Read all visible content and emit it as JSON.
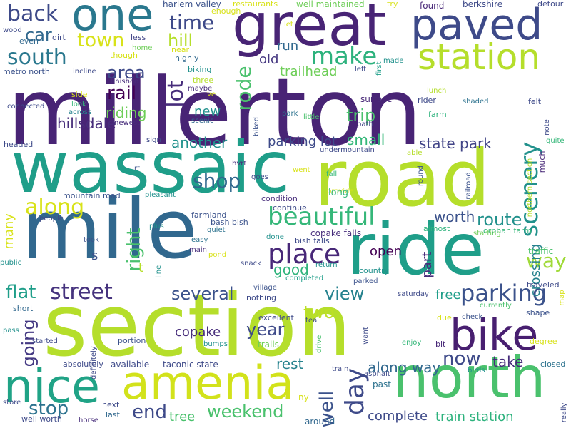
{
  "words": [
    {
      "text": "millerton",
      "color": "#482475"
    },
    {
      "text": "section",
      "color": "#b5de2b"
    },
    {
      "text": "mile",
      "color": "#31688e"
    },
    {
      "text": "wassaic",
      "color": "#1f9e89"
    },
    {
      "text": "road",
      "color": "#b5de2b"
    },
    {
      "text": "ride",
      "color": "#1f9e89"
    },
    {
      "text": "great",
      "color": "#482475"
    },
    {
      "text": "north",
      "color": "#4ac16d"
    },
    {
      "text": "amenia",
      "color": "#d2e21b"
    },
    {
      "text": "nice",
      "color": "#20a386"
    },
    {
      "text": "bike",
      "color": "#481f70"
    },
    {
      "text": "paved",
      "color": "#3e4a89"
    },
    {
      "text": "one",
      "color": "#2a788e"
    },
    {
      "text": "station",
      "color": "#b5de2b"
    },
    {
      "text": "place",
      "color": "#482878"
    },
    {
      "text": "beautiful",
      "color": "#35b779"
    },
    {
      "text": "make",
      "color": "#2db27d"
    },
    {
      "text": "scenery",
      "color": "#21918c"
    },
    {
      "text": "parking",
      "color": "#3b528b"
    },
    {
      "text": "day",
      "color": "#3e4a89"
    },
    {
      "text": "weekend",
      "color": "#4ac16d"
    },
    {
      "text": "south",
      "color": "#2a788e"
    },
    {
      "text": "along",
      "color": "#d8e219"
    },
    {
      "text": "street",
      "color": "#46337e"
    },
    {
      "text": "way",
      "color": "#a0da39"
    },
    {
      "text": "shop",
      "color": "#31688e"
    },
    {
      "text": "back",
      "color": "#3e4a89"
    },
    {
      "text": "time",
      "color": "#3e4a89"
    },
    {
      "text": "town",
      "color": "#d8e219"
    },
    {
      "text": "stop",
      "color": "#2c728e"
    },
    {
      "text": "end",
      "color": "#3e4a89"
    },
    {
      "text": "several",
      "color": "#3b528b"
    },
    {
      "text": "view",
      "color": "#26828e"
    },
    {
      "text": "well",
      "color": "#3b528b"
    },
    {
      "text": "right",
      "color": "#4ac16d"
    },
    {
      "text": "lot",
      "color": "#472d7b"
    },
    {
      "text": "rode",
      "color": "#4ac16d"
    },
    {
      "text": "year",
      "color": "#3e4a89"
    },
    {
      "text": "route",
      "color": "#21918c"
    },
    {
      "text": "rail",
      "color": "#440154"
    },
    {
      "text": "area",
      "color": "#3e4a89"
    },
    {
      "text": "trip",
      "color": "#4ac16d"
    },
    {
      "text": "now",
      "color": "#3e4a89"
    },
    {
      "text": "flat",
      "color": "#1f9e89"
    },
    {
      "text": "going",
      "color": "#443983"
    },
    {
      "text": "hill",
      "color": "#b5de2b"
    },
    {
      "text": "car",
      "color": "#31688e"
    },
    {
      "text": "hillsdale",
      "color": "#472d7b"
    },
    {
      "text": "state park",
      "color": "#414487"
    },
    {
      "text": "small",
      "color": "#35b779"
    },
    {
      "text": "riding",
      "color": "#6ece58"
    },
    {
      "text": "open",
      "color": "#440154"
    },
    {
      "text": "two",
      "color": "#bddf26"
    },
    {
      "text": "complete",
      "color": "#3e4a89"
    },
    {
      "text": "train station",
      "color": "#2db27d"
    },
    {
      "text": "copake",
      "color": "#472d7b"
    },
    {
      "text": "another",
      "color": "#21918c"
    },
    {
      "text": "good",
      "color": "#2fb47c"
    },
    {
      "text": "worth",
      "color": "#3b528b"
    },
    {
      "text": "take",
      "color": "#472d7b"
    },
    {
      "text": "rest",
      "color": "#26828e"
    },
    {
      "text": "along way",
      "color": "#31688e"
    },
    {
      "text": "parking lot",
      "color": "#3e4a89"
    },
    {
      "text": "new",
      "color": "#21918c"
    },
    {
      "text": "crossing",
      "color": "#26828e"
    },
    {
      "text": "part",
      "color": "#472d7b"
    },
    {
      "text": "free",
      "color": "#1f9e89"
    },
    {
      "text": "many",
      "color": "#d8e219"
    },
    {
      "text": "tree",
      "color": "#4ac16d"
    },
    {
      "text": "run",
      "color": "#31688e"
    },
    {
      "text": "old",
      "color": "#453781"
    },
    {
      "text": "trailhead",
      "color": "#6ece58"
    },
    {
      "text": "s",
      "color": "#3b528b"
    },
    {
      "text": "t",
      "color": "#b5de2b"
    },
    {
      "text": "harlem valley",
      "color": "#3b528b"
    },
    {
      "text": "well maintained",
      "color": "#6ece58"
    },
    {
      "text": "berkshire",
      "color": "#3e4a89"
    },
    {
      "text": "found",
      "color": "#482878"
    },
    {
      "text": "detour",
      "color": "#3e4a89"
    },
    {
      "text": "restaurants",
      "color": "#d8e219"
    },
    {
      "text": "try",
      "color": "#d8e219"
    },
    {
      "text": "enough",
      "color": "#d8e219"
    },
    {
      "text": "wood",
      "color": "#3e4a89"
    },
    {
      "text": "dirt",
      "color": "#3e4a89"
    },
    {
      "text": "less",
      "color": "#414487"
    },
    {
      "text": "even",
      "color": "#31688e"
    },
    {
      "text": "home",
      "color": "#6ece58"
    },
    {
      "text": "though",
      "color": "#d8e219"
    },
    {
      "text": "near",
      "color": "#d8e219"
    },
    {
      "text": "highly",
      "color": "#31688e"
    },
    {
      "text": "let",
      "color": "#d8e219"
    },
    {
      "text": "made",
      "color": "#21918c"
    },
    {
      "text": "first",
      "color": "#1f9e89"
    },
    {
      "text": "left",
      "color": "#3e4a89"
    },
    {
      "text": "metro north",
      "color": "#3b528b"
    },
    {
      "text": "incline",
      "color": "#3e4a89"
    },
    {
      "text": "biking",
      "color": "#21918c"
    },
    {
      "text": "three",
      "color": "#b5de2b"
    },
    {
      "text": "maybe",
      "color": "#472d7b"
    },
    {
      "text": "ve",
      "color": "#d8e219"
    },
    {
      "text": "finished",
      "color": "#472d7b"
    },
    {
      "text": "path",
      "color": "#414487"
    },
    {
      "text": "surface",
      "color": "#482878"
    },
    {
      "text": "lunch",
      "color": "#b5de2b"
    },
    {
      "text": "rider",
      "color": "#3e4a89"
    },
    {
      "text": "felt",
      "color": "#3e4a89"
    },
    {
      "text": "side",
      "color": "#d8e219"
    },
    {
      "text": "look",
      "color": "#35b779"
    },
    {
      "text": "across",
      "color": "#26828e"
    },
    {
      "text": "connected",
      "color": "#3e4a89"
    },
    {
      "text": "newest",
      "color": "#472d7b"
    },
    {
      "text": "scenic",
      "color": "#31688e"
    },
    {
      "text": "park",
      "color": "#2c728e"
    },
    {
      "text": "little",
      "color": "#4ac16d"
    },
    {
      "text": "shaded",
      "color": "#2c728e"
    },
    {
      "text": "farm",
      "color": "#2db27d"
    },
    {
      "text": "biked",
      "color": "#3b528b"
    },
    {
      "text": "note",
      "color": "#3e4a89"
    },
    {
      "text": "quite",
      "color": "#35b779"
    },
    {
      "text": "headed",
      "color": "#3e4a89"
    },
    {
      "text": "sign",
      "color": "#3e4a89"
    },
    {
      "text": "undermountain",
      "color": "#3e4a89"
    },
    {
      "text": "northern section",
      "color": "#b5de2b"
    },
    {
      "text": "able",
      "color": "#b5de2b"
    },
    {
      "text": "much",
      "color": "#482878"
    },
    {
      "text": "rt",
      "color": "#3b528b"
    },
    {
      "text": "hvrt",
      "color": "#472d7b"
    },
    {
      "text": "went",
      "color": "#d8e219"
    },
    {
      "text": "round",
      "color": "#3b528b"
    },
    {
      "text": "railroad",
      "color": "#3b528b"
    },
    {
      "text": "goes",
      "color": "#3e4a89"
    },
    {
      "text": "fall",
      "color": "#35b779"
    },
    {
      "text": "provide",
      "color": "#d8e219"
    },
    {
      "text": "long",
      "color": "#35b779"
    },
    {
      "text": "mountain road",
      "color": "#3b528b"
    },
    {
      "text": "pleasant",
      "color": "#21918c"
    },
    {
      "text": "condition",
      "color": "#472d7b"
    },
    {
      "text": "continue",
      "color": "#3e4a89"
    },
    {
      "text": "farmland",
      "color": "#3b528b"
    },
    {
      "text": "bash bish",
      "color": "#3b528b"
    },
    {
      "text": "people",
      "color": "#3e4a89"
    },
    {
      "text": "plus",
      "color": "#21918c"
    },
    {
      "text": "quiet",
      "color": "#2c728e"
    },
    {
      "text": "copake falls",
      "color": "#472d7b"
    },
    {
      "text": "almost",
      "color": "#2db27d"
    },
    {
      "text": "starting",
      "color": "#6ece58"
    },
    {
      "text": "orphan farm",
      "color": "#35b779"
    },
    {
      "text": "took",
      "color": "#3b528b"
    },
    {
      "text": "easy",
      "color": "#2c728e"
    },
    {
      "text": "done",
      "color": "#21918c"
    },
    {
      "text": "bish falls",
      "color": "#3e4a89"
    },
    {
      "text": "main",
      "color": "#472d7b"
    },
    {
      "text": "pond",
      "color": "#d8e219"
    },
    {
      "text": "line",
      "color": "#21918c"
    },
    {
      "text": "traffic",
      "color": "#4ac16d"
    },
    {
      "text": "public",
      "color": "#21918c"
    },
    {
      "text": "snack",
      "color": "#3e4a89"
    },
    {
      "text": "return",
      "color": "#21918c"
    },
    {
      "text": "country",
      "color": "#21918c"
    },
    {
      "text": "completed",
      "color": "#1f9e89"
    },
    {
      "text": "village",
      "color": "#3b528b"
    },
    {
      "text": "parked",
      "color": "#3b528b"
    },
    {
      "text": "traveled",
      "color": "#3e4a89"
    },
    {
      "text": "saturday",
      "color": "#3e4a89"
    },
    {
      "text": "map",
      "color": "#d8e219"
    },
    {
      "text": "nothing",
      "color": "#3e4a89"
    },
    {
      "text": "currently",
      "color": "#4ac16d"
    },
    {
      "text": "short",
      "color": "#31688e"
    },
    {
      "text": "excellent",
      "color": "#3e4a89"
    },
    {
      "text": "check",
      "color": "#3b528b"
    },
    {
      "text": "shape",
      "color": "#3b528b"
    },
    {
      "text": "tea",
      "color": "#3e4a89"
    },
    {
      "text": "due",
      "color": "#d8e219"
    },
    {
      "text": "pass",
      "color": "#21918c"
    },
    {
      "text": "portion",
      "color": "#3b528b"
    },
    {
      "text": "definitely",
      "color": "#3e4a89"
    },
    {
      "text": "drive",
      "color": "#4ac16d"
    },
    {
      "text": "want",
      "color": "#3e4a89"
    },
    {
      "text": "bit",
      "color": "#482878"
    },
    {
      "text": "enjoy",
      "color": "#35b779"
    },
    {
      "text": "started",
      "color": "#3e4a89"
    },
    {
      "text": "bumps",
      "color": "#21918c"
    },
    {
      "text": "trails",
      "color": "#6ece58"
    },
    {
      "text": "degree",
      "color": "#d8e219"
    },
    {
      "text": "closed",
      "color": "#2c728e"
    },
    {
      "text": "absolutely",
      "color": "#3e4a89"
    },
    {
      "text": "available",
      "color": "#3e4a89"
    },
    {
      "text": "taconic state",
      "color": "#3e4a89"
    },
    {
      "text": "train",
      "color": "#3e4a89"
    },
    {
      "text": "birds",
      "color": "#21918c"
    },
    {
      "text": "asphalt",
      "color": "#3e4a89"
    },
    {
      "text": "past",
      "color": "#2c728e"
    },
    {
      "text": "ny",
      "color": "#d8e219"
    },
    {
      "text": "store",
      "color": "#3e4a89"
    },
    {
      "text": "next",
      "color": "#3e4a89"
    },
    {
      "text": "last",
      "color": "#31688e"
    },
    {
      "text": "well worth",
      "color": "#3e4a89"
    },
    {
      "text": "horse",
      "color": "#472d7b"
    },
    {
      "text": "around",
      "color": "#31688e"
    },
    {
      "text": "really",
      "color": "#3e4a89"
    }
  ]
}
